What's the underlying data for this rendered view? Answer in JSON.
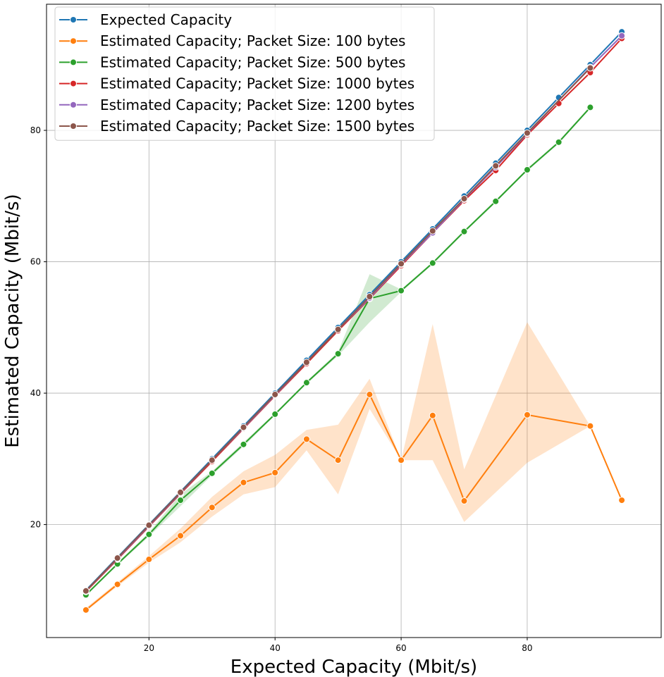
{
  "chart_data": {
    "type": "line",
    "title": "",
    "xlabel": "Expected Capacity (Mbit/s)",
    "ylabel": "Estimated Capacity (Mbit/s)",
    "xlim": [
      3.75,
      101.25
    ],
    "ylim": [
      2.8,
      99.2
    ],
    "xticks": [
      20,
      40,
      60,
      80
    ],
    "yticks": [
      20,
      40,
      60,
      80
    ],
    "grid": true,
    "legend_position": "upper-left",
    "series": [
      {
        "name": "Expected Capacity",
        "color": "#1f77b4",
        "x": [
          10,
          15,
          20,
          25,
          30,
          35,
          40,
          45,
          50,
          55,
          60,
          65,
          70,
          75,
          80,
          85,
          90,
          95
        ],
        "y": [
          10,
          15,
          20,
          25,
          30,
          35,
          40,
          45,
          50,
          55,
          60,
          65,
          70,
          75,
          80,
          85,
          90,
          95
        ]
      },
      {
        "name": "Estimated Capacity; Packet Size: 100 bytes",
        "color": "#ff7f0e",
        "x": [
          10,
          15,
          20,
          25,
          30,
          35,
          40,
          45,
          50,
          55,
          60,
          65,
          70,
          80,
          90,
          95
        ],
        "y": [
          7.0,
          10.9,
          14.7,
          18.3,
          22.6,
          26.4,
          27.9,
          33.0,
          29.8,
          39.8,
          29.8,
          36.6,
          23.6,
          36.7,
          35.0,
          23.7
        ],
        "band": [
          {
            "x": 10,
            "lo": 6.8,
            "hi": 7.3
          },
          {
            "x": 15,
            "lo": 10.6,
            "hi": 11.2
          },
          {
            "x": 20,
            "lo": 14.2,
            "hi": 15.2
          },
          {
            "x": 25,
            "lo": 17.3,
            "hi": 19.4
          },
          {
            "x": 30,
            "lo": 21.2,
            "hi": 24.2
          },
          {
            "x": 35,
            "lo": 24.6,
            "hi": 28.1
          },
          {
            "x": 40,
            "lo": 25.7,
            "hi": 30.6
          },
          {
            "x": 45,
            "lo": 31.3,
            "hi": 34.4
          },
          {
            "x": 50,
            "lo": 24.6,
            "hi": 35.2
          },
          {
            "x": 55,
            "lo": 37.6,
            "hi": 42.2
          },
          {
            "x": 60,
            "lo": 29.8,
            "hi": 29.8
          },
          {
            "x": 65,
            "lo": 29.8,
            "hi": 50.5
          },
          {
            "x": 70,
            "lo": 20.4,
            "hi": 28.4
          },
          {
            "x": 80,
            "lo": 29.4,
            "hi": 50.8
          },
          {
            "x": 90,
            "lo": 35.0,
            "hi": 35.0
          },
          {
            "x": 95,
            "lo": 23.7,
            "hi": 23.7
          }
        ]
      },
      {
        "name": "Estimated Capacity; Packet Size: 500 bytes",
        "color": "#2ca02c",
        "x": [
          10,
          15,
          20,
          25,
          30,
          35,
          40,
          45,
          50,
          55,
          60,
          65,
          70,
          75,
          80,
          85,
          90
        ],
        "y": [
          9.3,
          14.0,
          18.5,
          23.7,
          27.8,
          32.2,
          36.8,
          41.6,
          46.0,
          54.4,
          55.6,
          59.8,
          64.6,
          69.2,
          74.0,
          78.2,
          83.5
        ],
        "band": [
          {
            "x": 10,
            "lo": 9.1,
            "hi": 9.5
          },
          {
            "x": 15,
            "lo": 13.8,
            "hi": 14.2
          },
          {
            "x": 20,
            "lo": 18.2,
            "hi": 18.8
          },
          {
            "x": 25,
            "lo": 22.8,
            "hi": 24.6
          },
          {
            "x": 30,
            "lo": 27.5,
            "hi": 28.1
          },
          {
            "x": 35,
            "lo": 31.9,
            "hi": 32.5
          },
          {
            "x": 40,
            "lo": 36.6,
            "hi": 37.0
          },
          {
            "x": 45,
            "lo": 41.4,
            "hi": 41.8
          },
          {
            "x": 50,
            "lo": 45.7,
            "hi": 46.3
          },
          {
            "x": 55,
            "lo": 50.8,
            "hi": 58.1
          },
          {
            "x": 60,
            "lo": 55.4,
            "hi": 55.8
          },
          {
            "x": 65,
            "lo": 59.6,
            "hi": 60.0
          },
          {
            "x": 70,
            "lo": 64.4,
            "hi": 64.8
          },
          {
            "x": 75,
            "lo": 69.0,
            "hi": 69.4
          },
          {
            "x": 80,
            "lo": 73.8,
            "hi": 74.2
          },
          {
            "x": 85,
            "lo": 78.0,
            "hi": 78.4
          },
          {
            "x": 90,
            "lo": 83.3,
            "hi": 83.7
          }
        ]
      },
      {
        "name": "Estimated Capacity; Packet Size: 1000 bytes",
        "color": "#d62728",
        "x": [
          10,
          15,
          20,
          25,
          30,
          35,
          40,
          45,
          50,
          55,
          60,
          65,
          70,
          75,
          80,
          85,
          90,
          95
        ],
        "y": [
          9.8,
          14.7,
          19.7,
          24.7,
          29.6,
          34.6,
          39.6,
          44.5,
          49.5,
          54.4,
          59.4,
          64.4,
          69.3,
          73.9,
          79.3,
          84.1,
          88.8,
          94.0
        ]
      },
      {
        "name": "Estimated Capacity; Packet Size: 1200 bytes",
        "color": "#9467bd",
        "x": [
          10,
          15,
          20,
          25,
          30,
          35,
          40,
          45,
          50,
          55,
          60,
          65,
          70,
          75,
          80,
          90,
          95
        ],
        "y": [
          9.9,
          14.8,
          19.8,
          24.8,
          29.8,
          34.7,
          39.7,
          44.7,
          49.7,
          54.5,
          59.6,
          64.4,
          69.5,
          74.4,
          79.5,
          89.6,
          94.4
        ]
      },
      {
        "name": "Estimated Capacity; Packet Size: 1500 bytes",
        "color": "#8c564b",
        "x": [
          10,
          15,
          20,
          25,
          30,
          35,
          40,
          45,
          50,
          55,
          60,
          65,
          70,
          75,
          80,
          90
        ],
        "y": [
          9.9,
          14.9,
          19.9,
          24.9,
          29.8,
          34.8,
          39.8,
          44.7,
          49.7,
          54.7,
          59.7,
          64.7,
          69.6,
          74.6,
          79.6,
          89.5
        ]
      }
    ]
  }
}
